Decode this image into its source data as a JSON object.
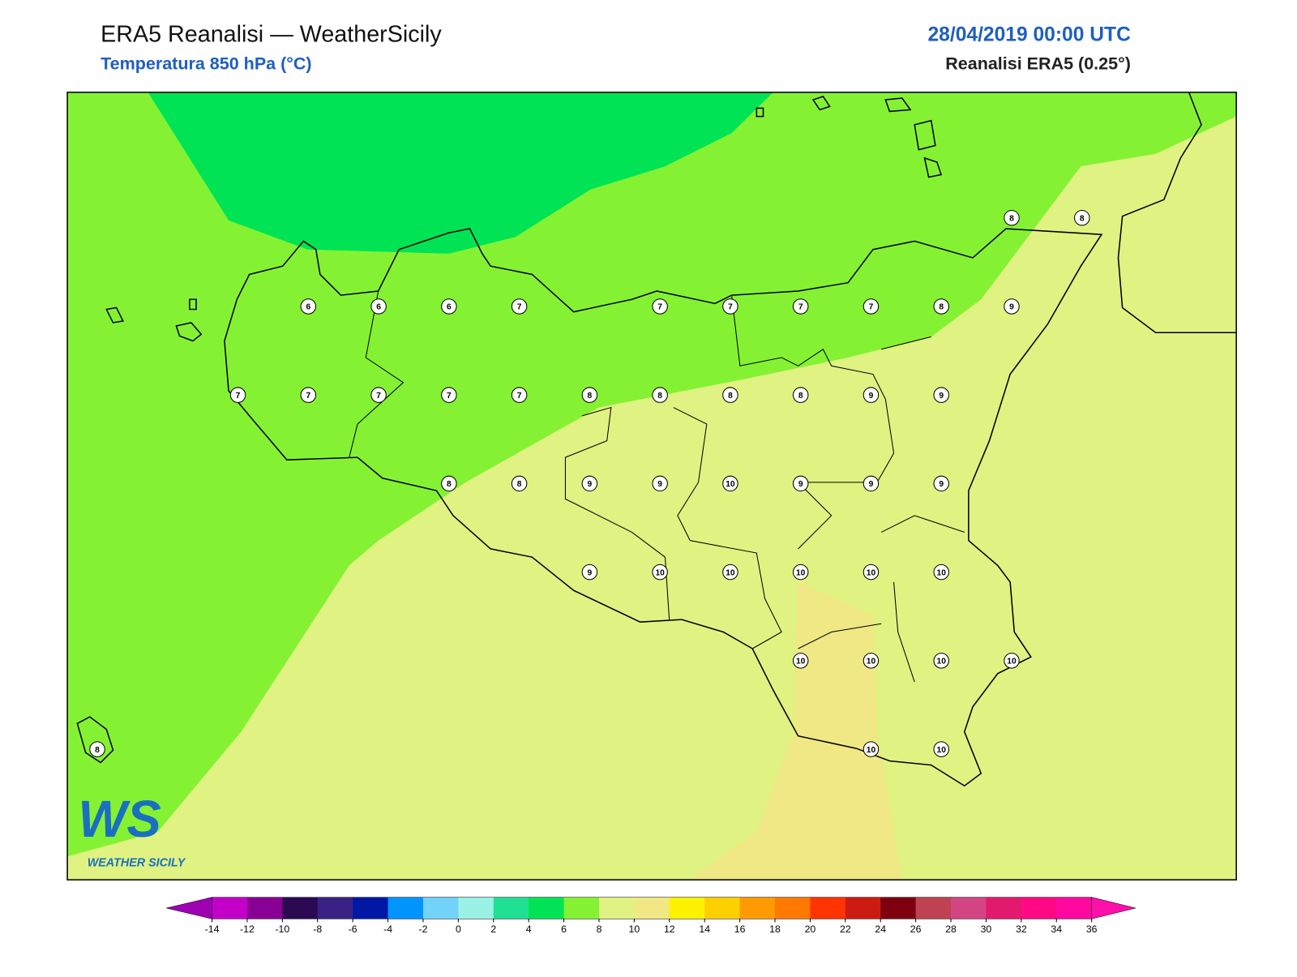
{
  "header": {
    "title": "ERA5 Reanalisi — WeatherSicily",
    "subtitle": "Temperatura 850 hPa (°C)",
    "date": "28/04/2019 00:00 UTC",
    "source": "Reanalisi ERA5 (0.25°)"
  },
  "map": {
    "station_values": [
      [
        null,
        null,
        null,
        null,
        null,
        null,
        null,
        null,
        null,
        null,
        null,
        null,
        null,
        8,
        8
      ],
      [
        null,
        null,
        null,
        6,
        6,
        6,
        7,
        null,
        7,
        7,
        7,
        7,
        8,
        9,
        null
      ],
      [
        null,
        null,
        7,
        7,
        7,
        7,
        7,
        8,
        8,
        8,
        8,
        9,
        9,
        null,
        null
      ],
      [
        null,
        null,
        null,
        null,
        null,
        8,
        8,
        9,
        9,
        10,
        9,
        9,
        9,
        null,
        null
      ],
      [
        null,
        null,
        null,
        null,
        null,
        null,
        null,
        9,
        10,
        10,
        10,
        10,
        10,
        null,
        null
      ],
      [
        null,
        null,
        null,
        null,
        null,
        null,
        null,
        null,
        null,
        null,
        10,
        10,
        10,
        10,
        null
      ],
      [
        8,
        null,
        null,
        null,
        null,
        null,
        null,
        null,
        null,
        null,
        null,
        10,
        10,
        null,
        null
      ]
    ]
  },
  "colorbar": {
    "ticks": [
      -14,
      -12,
      -10,
      -8,
      -6,
      -4,
      -2,
      0,
      2,
      4,
      6,
      8,
      10,
      12,
      14,
      16,
      18,
      20,
      22,
      24,
      26,
      28,
      30,
      32,
      34,
      36
    ],
    "colors": [
      "#a000b4",
      "#c400c8",
      "#880094",
      "#2c0a52",
      "#3a2285",
      "#0018a4",
      "#0094ff",
      "#72d2f8",
      "#9af2e6",
      "#20e094",
      "#00e355",
      "#84f232",
      "#e0f282",
      "#f0e884",
      "#fff200",
      "#ffd000",
      "#ff9a00",
      "#ff7800",
      "#ff3400",
      "#cc1c12",
      "#7e0010",
      "#be4252",
      "#d24482",
      "#e21a6e",
      "#ff0a84",
      "#ff08a0",
      "#ff10a8"
    ]
  },
  "logo": {
    "initials": "WS",
    "name": "WEATHER SICILY"
  }
}
